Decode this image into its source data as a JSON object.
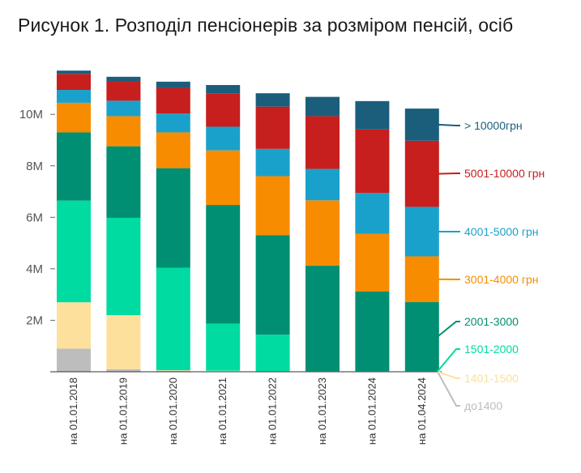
{
  "title": "Рисунок 1. Розподіл пенсіонерів за розміром пенсій, осіб",
  "chart_data": {
    "type": "bar",
    "stacked": true,
    "title": "Рисунок 1. Розподіл пенсіонерів за розміром пенсій, осіб",
    "categories": [
      "на 01.01.2018",
      "на 01.01.2019",
      "на 01.01.2020",
      "на 01.01.2021",
      "на 01.01.2022",
      "на 01.01.2023",
      "на 01.01.2024",
      "на 01.04.2024"
    ],
    "ylim": [
      0,
      11800000
    ],
    "yticks": [
      {
        "value": 2000000,
        "label": "2M"
      },
      {
        "value": 4000000,
        "label": "4M"
      },
      {
        "value": 6000000,
        "label": "6M"
      },
      {
        "value": 8000000,
        "label": "8M"
      },
      {
        "value": 10000000,
        "label": "10M"
      }
    ],
    "grid": false,
    "legend_placement": "right",
    "series": [
      {
        "name": "до1400",
        "color": "#bdbdbd",
        "values": [
          900000,
          100000,
          40000,
          20000,
          10000,
          5000,
          5000,
          5000
        ]
      },
      {
        "name": "1401-1500",
        "color": "#fde09c",
        "values": [
          1800000,
          2100000,
          20000,
          20000,
          10000,
          5000,
          5000,
          5000
        ]
      },
      {
        "name": "1501-2000",
        "color": "#00dba2",
        "values": [
          3950000,
          3780000,
          3980000,
          1830000,
          1420000,
          20000,
          15000,
          15000
        ]
      },
      {
        "name": "2001-3000",
        "color": "#008f72",
        "values": [
          2650000,
          2780000,
          3870000,
          4610000,
          3870000,
          4090000,
          3090000,
          2680000
        ]
      },
      {
        "name": "3001-4000 грн",
        "color": "#f88c00",
        "values": [
          1150000,
          1170000,
          1390000,
          2120000,
          2290000,
          2540000,
          2240000,
          1780000
        ]
      },
      {
        "name": "4001-5000 грн",
        "color": "#1aa1cb",
        "values": [
          500000,
          600000,
          730000,
          920000,
          1060000,
          1220000,
          1590000,
          1920000
        ]
      },
      {
        "name": "5001-10000 грн",
        "color": "#c71e1e",
        "values": [
          620000,
          750000,
          1000000,
          1280000,
          1640000,
          2050000,
          2470000,
          2570000
        ]
      },
      {
        "name": "> 10000грн",
        "color": "#1b5e7c",
        "values": [
          130000,
          180000,
          240000,
          340000,
          520000,
          750000,
          1100000,
          1250000
        ]
      }
    ]
  }
}
